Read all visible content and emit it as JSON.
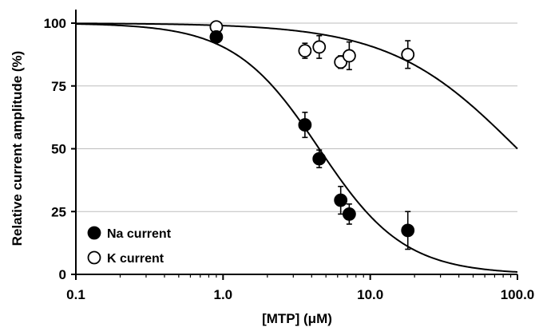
{
  "chart_data": {
    "type": "scatter",
    "title": "",
    "xlabel": "[MTP] (μM)",
    "ylabel": "Relative current amplitude (%)",
    "x_scale": "log",
    "xlim": [
      0.1,
      100
    ],
    "ylim": [
      0,
      100
    ],
    "x_ticks": [
      "0.1",
      "1.0",
      "10.0",
      "100.0"
    ],
    "y_ticks": [
      "0",
      "25",
      "50",
      "75",
      "100"
    ],
    "grid": "horizontal",
    "legend_position": "bottom-left",
    "colors": {
      "na": "#000000",
      "k": "#ffffff",
      "grid": "#bdbdbd"
    },
    "series": [
      {
        "name": "Na current",
        "marker": "filled-circle",
        "x": [
          0.9,
          3.6,
          4.5,
          6.3,
          7.2,
          18
        ],
        "y": [
          94.5,
          59.5,
          46,
          29.5,
          24,
          17.5
        ],
        "error": [
          1.5,
          5,
          3.5,
          5.5,
          4,
          7.5
        ],
        "fit": {
          "ic50": 4.5,
          "hill": 1.5
        }
      },
      {
        "name": "K current",
        "marker": "open-circle",
        "x": [
          0.9,
          3.6,
          4.5,
          6.3,
          7.2,
          18
        ],
        "y": [
          98.5,
          89,
          90.5,
          84.5,
          87,
          87.5
        ],
        "error": [
          1.5,
          3,
          4.5,
          2.5,
          5.5,
          5.5
        ],
        "fit": {
          "ic50": 100,
          "hill": 1.0
        }
      }
    ]
  }
}
